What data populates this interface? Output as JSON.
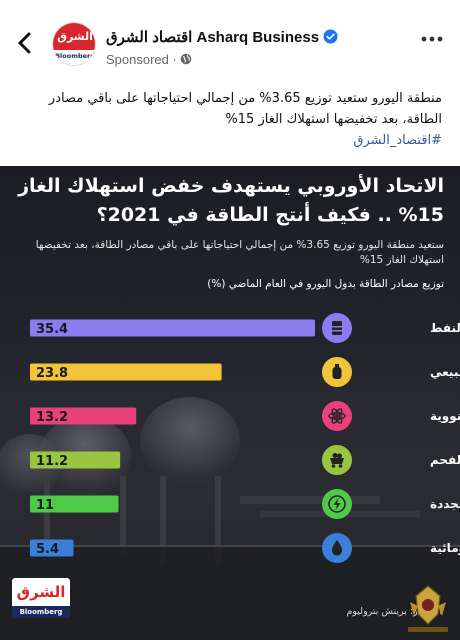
{
  "header": {
    "logo_text": "الشرق",
    "logo_sub": "Bloomberg",
    "page_name": "اقتصاد الشرق Asharq Business",
    "sponsored": "Sponsored ·"
  },
  "caption": {
    "text": "منطقة اليورو ستعيد توزيع 3.65% من إجمالي احتياجاتها على باقي مصادر الطاقة، بعد تخفيضها استهلاك الغاز 15%",
    "hashtag": "#اقتصاد_الشرق"
  },
  "infographic": {
    "title": "الاتحاد الأوروبي يستهدف خفض استهلاك الغاز 15% .. فكيف أنتج الطاقة في 2021؟",
    "subtitle": "ستعيد منطقة اليورو توزيع 3.65% من إجمالي احتياجاتها على باقي مصادر الطاقة، بعد تخفيضها استهلاك الغاز 15%",
    "chart_label": "توزيع مصادر الطاقة بدول اليورو في العام الماضي (%)",
    "source": "المصدر: بريتش بتروليوم",
    "brand_top": "الشرق",
    "brand_bottom": "Bloomberg"
  },
  "chart_data": {
    "type": "bar",
    "orientation": "horizontal",
    "title": "توزيع مصادر الطاقة بدول اليورو في العام الماضي (%)",
    "categories": [
      "النفط",
      "الغاز الطبيعي",
      "نووية",
      "الفحم",
      "متجددة",
      "كهرومائية"
    ],
    "values": [
      35.4,
      23.8,
      13.2,
      11.2,
      11,
      5.4
    ],
    "value_labels": [
      "35.4",
      "23.8",
      "13.2",
      "11.2",
      "11",
      "5.4"
    ],
    "icons": [
      "oil-barrel-icon",
      "gas-cylinder-icon",
      "atom-icon",
      "coal-cart-icon",
      "lightning-icon",
      "water-drop-icon"
    ],
    "colors": [
      "#8c7cf0",
      "#f2c43a",
      "#e9417a",
      "#9bc441",
      "#4fc94a",
      "#3a7fd9"
    ],
    "xlim": [
      0,
      35.4
    ],
    "grid": false,
    "legend": "none"
  }
}
